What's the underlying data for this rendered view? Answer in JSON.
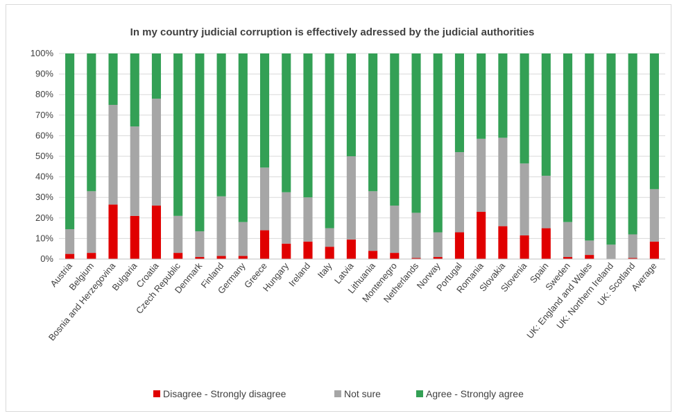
{
  "chart_data": {
    "type": "bar",
    "stacked": true,
    "percent_stacked": true,
    "title": "In my country judicial corruption is effectively adressed by the judicial authorities",
    "xlabel": "",
    "ylabel": "",
    "ylim": [
      0,
      100
    ],
    "yticks": [
      "0%",
      "10%",
      "20%",
      "30%",
      "40%",
      "50%",
      "60%",
      "70%",
      "80%",
      "90%",
      "100%"
    ],
    "grid": true,
    "legend_position": "bottom",
    "categories": [
      "Austria",
      "Belgium",
      "Bosnia and Herzegovina",
      "Bulgaria",
      "Croatia",
      "Czech Republic",
      "Denmark",
      "Finland",
      "Germany",
      "Greece",
      "Hungary",
      "Ireland",
      "Italy",
      "Latvia",
      "Lithuania",
      "Montenegro",
      "Netherlands",
      "Norway",
      "Portugal",
      "Romania",
      "Slovakia",
      "Slovenia",
      "Spain",
      "Sweden",
      "UK: England and Wales",
      "UK: Northern Ireland",
      "UK: Scotland",
      "Average"
    ],
    "series": [
      {
        "name": "Disagree - Strongly disagree",
        "color": "#e00000",
        "values": [
          2.5,
          3,
          26.5,
          21,
          26,
          3,
          1,
          1.5,
          1.5,
          14,
          7.5,
          8.5,
          6,
          9.5,
          4,
          3,
          0.5,
          1,
          13,
          23,
          16,
          11.5,
          15,
          1,
          2,
          0,
          0.5,
          8.5
        ]
      },
      {
        "name": "Not sure",
        "color": "#a6a6a6",
        "values": [
          12,
          30,
          48.5,
          43.5,
          52,
          18,
          12.5,
          29,
          16.5,
          30.5,
          25,
          21.5,
          9,
          40.5,
          29,
          23,
          22,
          12,
          39,
          35.5,
          43,
          35,
          25.5,
          17,
          7,
          7,
          11.5,
          25.5
        ]
      },
      {
        "name": "Agree - Strongly agree",
        "color": "#33a055",
        "values": [
          85.5,
          67,
          25,
          35.5,
          22,
          79,
          86.5,
          69.5,
          82,
          55.5,
          67.5,
          70,
          85,
          50,
          67,
          74,
          77.5,
          87,
          48,
          41.5,
          41,
          53.5,
          59.5,
          82,
          91,
          93,
          88,
          66
        ]
      }
    ]
  }
}
